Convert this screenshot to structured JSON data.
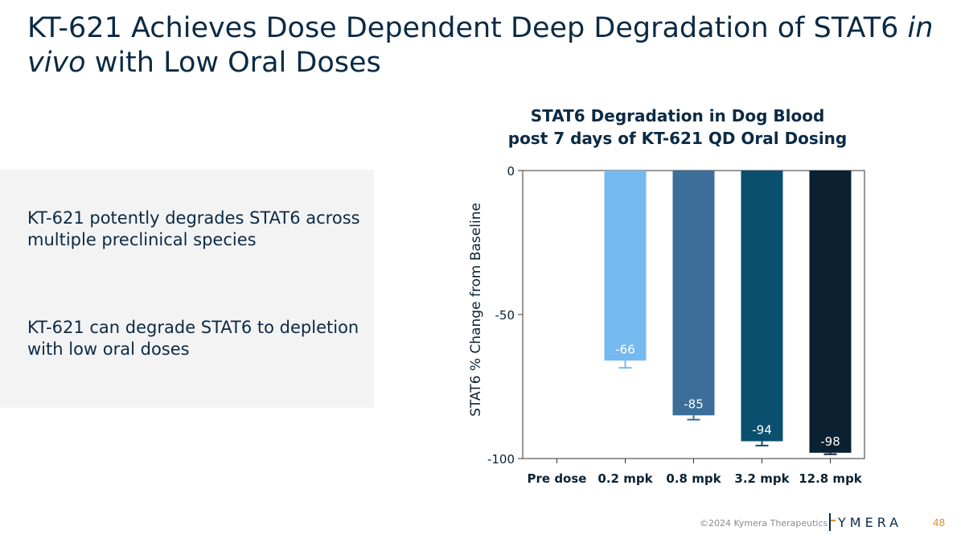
{
  "slide": {
    "title_main": "KT-621 Achieves Dose Dependent Deep Degradation of STAT6 ",
    "title_italic_1": "in vivo",
    "title_rest": " with Low Oral Doses",
    "bullets": [
      "KT-621 potently degrades STAT6 across multiple preclinical species",
      "KT-621 can degrade STAT6 to depletion with low oral doses"
    ]
  },
  "footer": {
    "copyright": "©2024 Kymera Therapeutics",
    "logo_text": "YMERA",
    "page_number": "48"
  },
  "chart_data": {
    "type": "bar",
    "title_line1": "STAT6 Degradation in Dog Blood",
    "title_line2": "post 7 days of KT-621 QD Oral Dosing",
    "ylabel": "STAT6 % Change from Baseline",
    "xlabel": "",
    "ylim": [
      -100,
      0
    ],
    "yticks": [
      0,
      -50,
      -100
    ],
    "categories": [
      "Pre dose",
      "0.2 mpk",
      "0.8 mpk",
      "3.2 mpk",
      "12.8 mpk"
    ],
    "values": [
      null,
      -66,
      -85,
      -94,
      -98
    ],
    "errors": [
      null,
      2.5,
      1.5,
      1.5,
      0.5
    ],
    "data_labels": [
      "",
      "-66",
      "-85",
      "-94",
      "-98"
    ],
    "colors": [
      "#74b9f0",
      "#74b9f0",
      "#3b6f9a",
      "#0a4f6e",
      "#0b2030"
    ]
  }
}
